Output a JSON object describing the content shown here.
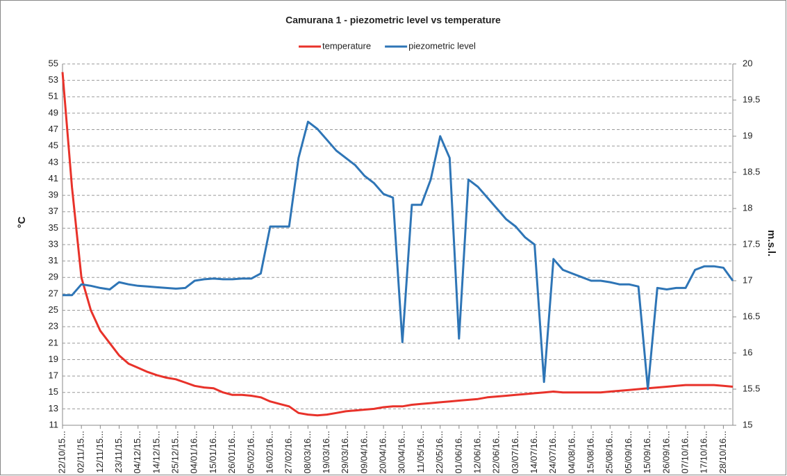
{
  "chart_data": {
    "type": "line",
    "title": "Camurana 1 - piezometric level vs temperature",
    "ylabel": "°C",
    "y2label": "m.s.l.",
    "grid": true,
    "legend": "top",
    "categories": [
      "22/10/15...",
      null,
      "02/11/15...",
      null,
      "12/11/15...",
      null,
      "23/11/15...",
      null,
      "04/12/15...",
      null,
      "14/12/15...",
      null,
      "25/12/15...",
      null,
      "04/01/16...",
      null,
      "15/01/16...",
      null,
      "26/01/16...",
      null,
      "05/02/16...",
      null,
      "16/02/16...",
      null,
      "27/02/16...",
      null,
      "08/03/16...",
      null,
      "19/03/16...",
      null,
      "29/03/16...",
      null,
      "09/04/16...",
      null,
      "20/04/16...",
      null,
      "30/04/16...",
      null,
      "11/05/16...",
      null,
      "22/05/16...",
      null,
      "01/06/16...",
      null,
      "12/06/16...",
      null,
      "22/06/16...",
      null,
      "03/07/16...",
      null,
      "14/07/16...",
      null,
      "24/07/16...",
      null,
      "04/08/16...",
      null,
      "15/08/16...",
      null,
      "25/08/16...",
      null,
      "05/09/16...",
      null,
      "15/09/16...",
      null,
      "26/09/16...",
      null,
      "07/10/16...",
      null,
      "17/10/16...",
      null,
      "28/10/16...",
      null
    ],
    "series": [
      {
        "name": "temperature",
        "color": "#e8322a",
        "values": [
          54,
          40,
          29,
          25,
          22.5,
          21,
          19.5,
          18.5,
          18,
          17.5,
          17.1,
          16.8,
          16.6,
          16.2,
          15.8,
          15.6,
          15.5,
          15.0,
          14.7,
          14.7,
          14.6,
          14.4,
          13.9,
          13.6,
          13.3,
          12.5,
          12.3,
          12.2,
          12.3,
          12.5,
          12.7,
          12.8,
          12.9,
          13.0,
          13.2,
          13.3,
          13.3,
          13.5,
          13.6,
          13.7,
          13.8,
          13.9,
          14.0,
          14.1,
          14.2,
          14.4,
          14.5,
          14.6,
          14.7,
          14.8,
          14.9,
          15.0,
          15.1,
          15.0,
          15.0,
          15.0,
          15.0,
          15.0,
          15.1,
          15.2,
          15.3,
          15.4,
          15.5,
          15.6,
          15.7,
          15.8,
          15.9,
          15.9,
          15.9,
          15.9,
          15.8,
          15.7
        ]
      },
      {
        "name": "piezometric level",
        "color": "#2e75b6",
        "axis": "y2",
        "values": [
          16.8,
          16.8,
          16.95,
          16.93,
          16.9,
          16.88,
          16.98,
          16.95,
          16.93,
          16.92,
          16.91,
          16.9,
          16.89,
          16.9,
          17.0,
          17.02,
          17.03,
          17.02,
          17.02,
          17.03,
          17.03,
          17.1,
          17.75,
          17.75,
          17.75,
          18.7,
          19.2,
          19.1,
          18.95,
          18.8,
          18.7,
          18.6,
          18.45,
          18.35,
          18.2,
          18.15,
          16.15,
          18.05,
          18.05,
          18.4,
          19.0,
          18.7,
          16.2,
          18.4,
          18.3,
          18.15,
          18.0,
          17.85,
          17.75,
          17.6,
          17.5,
          15.6,
          17.3,
          17.15,
          17.1,
          17.05,
          17.0,
          17.0,
          16.98,
          16.95,
          16.95,
          16.92,
          15.5,
          16.9,
          16.88,
          16.9,
          16.9,
          17.15,
          17.2,
          17.2,
          17.18,
          17.0
        ]
      }
    ],
    "ylim": [
      11,
      55
    ],
    "yticks": [
      11,
      13,
      15,
      17,
      19,
      21,
      23,
      25,
      27,
      29,
      31,
      33,
      35,
      37,
      39,
      41,
      43,
      45,
      47,
      49,
      51,
      53,
      55
    ],
    "y2lim": [
      15,
      20
    ],
    "y2ticks": [
      15,
      15.5,
      16,
      16.5,
      17,
      17.5,
      18,
      18.5,
      19,
      19.5,
      20
    ]
  }
}
